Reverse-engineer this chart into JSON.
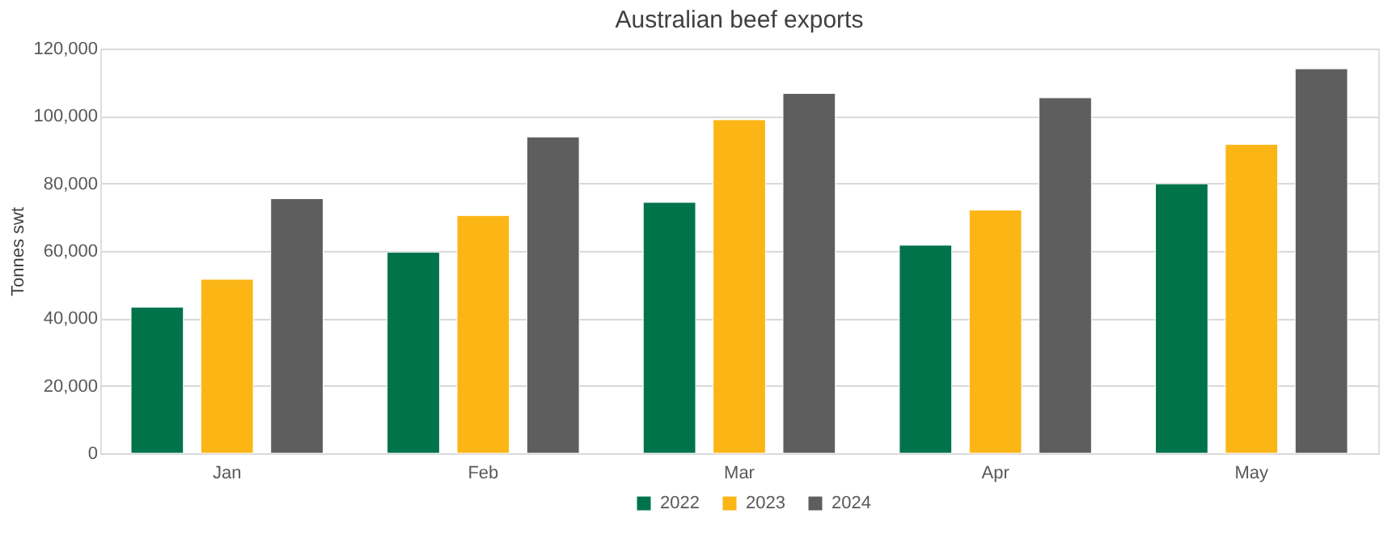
{
  "chart_data": {
    "type": "bar",
    "title": "Australian beef exports",
    "ylabel": "Tonnes swt",
    "categories": [
      "Jan",
      "Feb",
      "Mar",
      "Apr",
      "May"
    ],
    "series": [
      {
        "name": "2022",
        "color": "#00734a",
        "values": [
          43300,
          59600,
          74400,
          61700,
          79900
        ]
      },
      {
        "name": "2023",
        "color": "#fbb616",
        "values": [
          51600,
          70500,
          98900,
          72100,
          91600
        ]
      },
      {
        "name": "2024",
        "color": "#5e5e5e",
        "values": [
          75500,
          93800,
          106700,
          105400,
          114000
        ]
      }
    ],
    "ylim": [
      0,
      120000
    ],
    "yticks": [
      0,
      {
        "value": 20000,
        "label": "20,000"
      },
      {
        "value": 40000,
        "label": "40,000"
      },
      {
        "value": 60000,
        "label": "60,000"
      },
      {
        "value": 80000,
        "label": "80,000"
      },
      {
        "value": 100000,
        "label": "100,000"
      },
      {
        "value": 120000,
        "label": "120,000"
      }
    ],
    "grid": "y",
    "legend": "bottom"
  }
}
